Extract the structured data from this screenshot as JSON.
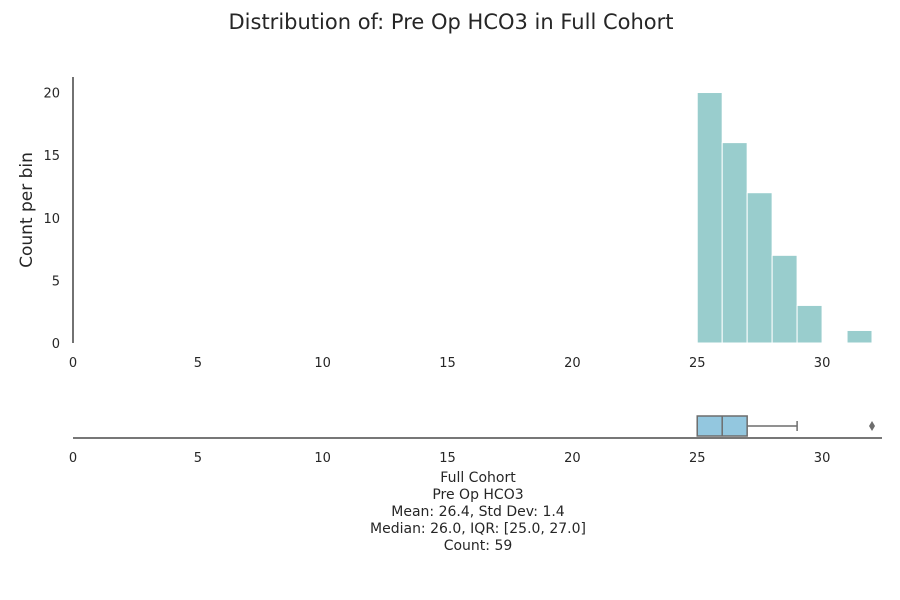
{
  "chart_data": {
    "type": "bar",
    "title": "Distribution of: Pre Op HCO3 in Full Cohort",
    "ylabel": "Count per bin",
    "xlim": [
      0,
      32.4
    ],
    "ylim": [
      0,
      21
    ],
    "xticks": [
      0,
      5,
      10,
      15,
      20,
      25,
      30
    ],
    "yticks": [
      0,
      5,
      10,
      15,
      20
    ],
    "bar_color": "#99CDCD",
    "bins": [
      {
        "x0": 25,
        "x1": 26,
        "count": 20
      },
      {
        "x0": 26,
        "x1": 27,
        "count": 16
      },
      {
        "x0": 27,
        "x1": 28,
        "count": 12
      },
      {
        "x0": 28,
        "x1": 29,
        "count": 7
      },
      {
        "x0": 29,
        "x1": 30,
        "count": 3
      },
      {
        "x0": 30,
        "x1": 31,
        "count": 0
      },
      {
        "x0": 31,
        "x1": 32,
        "count": 1
      }
    ],
    "boxplot": {
      "whisker_low": 25,
      "q1": 25,
      "median": 26,
      "q3": 27,
      "whisker_high": 29,
      "outliers": [
        32
      ],
      "fill": "#93C7DF"
    }
  },
  "caption": {
    "line1": "Full Cohort",
    "line2": "Pre Op HCO3",
    "line3": "Mean: 26.4, Std Dev: 1.4",
    "line4": "Median: 26.0, IQR: [25.0, 27.0]",
    "line5": "Count: 59"
  }
}
